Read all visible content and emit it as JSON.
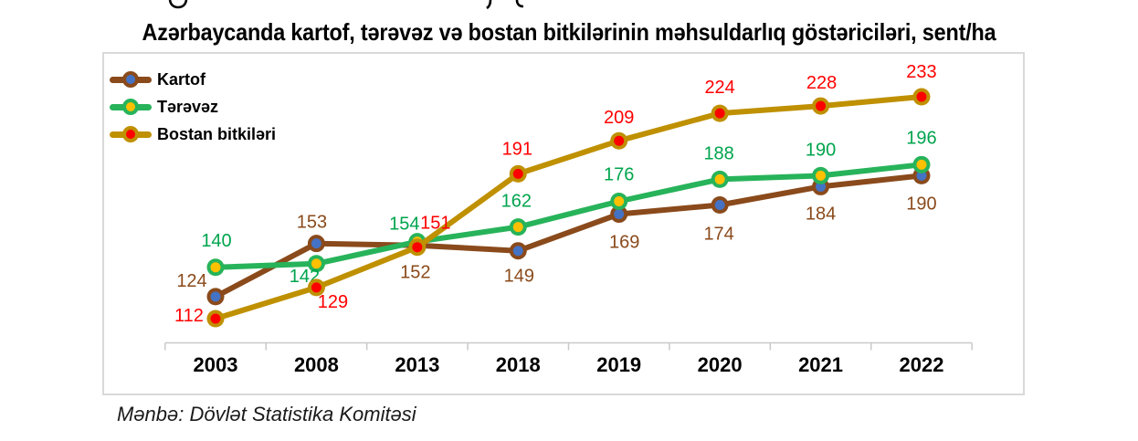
{
  "page": {
    "title": "Azərbaycanda kartof, tərəvəz və bostan bitkilərinin məhsuldarlıq göstəriciləri, sent/ha",
    "source": "Mənbə: Dövlət Statistika Komitəsi"
  },
  "chart_data": {
    "type": "line",
    "title": "Azərbaycanda kartof, tərəvəz və bostan bitkilərinin məhsuldarlıq göstəriciləri, sent/ha",
    "unit": "sent/ha",
    "categories": [
      "2003",
      "2008",
      "2013",
      "2018",
      "2019",
      "2020",
      "2021",
      "2022"
    ],
    "series": [
      {
        "name": "Kartof",
        "values": [
          124,
          153,
          152,
          149,
          169,
          174,
          184,
          190
        ],
        "line_color": "#8A4A1B",
        "marker_color": "#4472C4",
        "label_color": "#8A4A1B"
      },
      {
        "name": "Tərəvəz",
        "values": [
          140,
          142,
          154,
          162,
          176,
          188,
          190,
          196
        ],
        "line_color": "#27B35A",
        "marker_color": "#FFC000",
        "label_color": "#00A44D"
      },
      {
        "name": "Bostan bitkiləri",
        "values": [
          112,
          129,
          151,
          191,
          209,
          224,
          228,
          233
        ],
        "line_color": "#BF9000",
        "marker_color": "#FF0000",
        "label_color": "#FF0000"
      }
    ],
    "legend_position": "top-left",
    "grid": false,
    "y_axis_visible": false,
    "data_labels_visible": true,
    "axis_color": "#C9C9C9",
    "frame_color": "#D9D9D9"
  }
}
